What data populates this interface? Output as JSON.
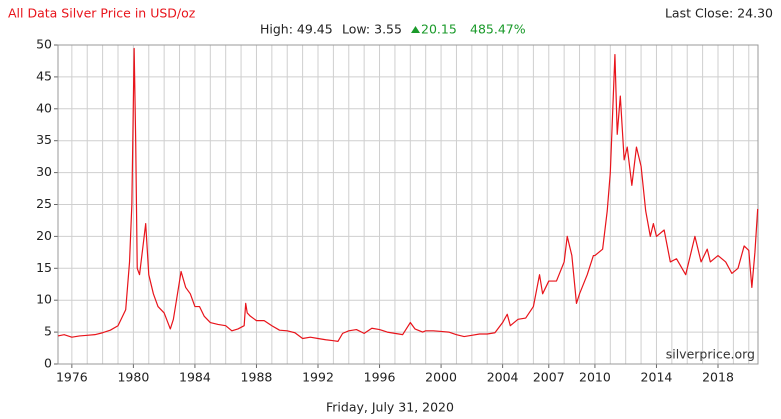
{
  "chart_data": {
    "type": "line",
    "title": "All Data Silver Price in USD/oz",
    "last_close": "Last Close: 24.30",
    "stats": {
      "high": "High: 49.45",
      "low": "Low: 3.55",
      "change": "20.15",
      "change_pct": "485.47%"
    },
    "watermark": "silverprice.org",
    "date": "Friday, July 31, 2020",
    "x": [
      1975.1,
      1975.5,
      1976,
      1976.5,
      1977,
      1977.5,
      1978,
      1978.5,
      1979,
      1979.5,
      1979.75,
      1979.9,
      1980.05,
      1980.15,
      1980.25,
      1980.4,
      1980.6,
      1980.8,
      1981,
      1981.3,
      1981.6,
      1982,
      1982.4,
      1982.6,
      1982.8,
      1983.1,
      1983.4,
      1983.7,
      1984,
      1984.3,
      1984.6,
      1985,
      1985.5,
      1986,
      1986.4,
      1986.8,
      1987.2,
      1987.3,
      1987.4,
      1987.6,
      1988,
      1988.5,
      1989,
      1989.5,
      1990,
      1990.5,
      1991,
      1991.5,
      1992,
      1992.5,
      1993,
      1993.3,
      1993.6,
      1994,
      1994.5,
      1995,
      1995.5,
      1996,
      1996.5,
      1997,
      1997.5,
      1998,
      1998.3,
      1998.8,
      1999,
      1999.5,
      2000,
      2000.5,
      2001,
      2001.5,
      2002,
      2002.5,
      2003,
      2003.5,
      2004,
      2004.3,
      2004.5,
      2005,
      2005.5,
      2006,
      2006.4,
      2006.6,
      2007,
      2007.5,
      2008,
      2008.2,
      2008.5,
      2008.8,
      2009,
      2009.5,
      2009.9,
      2010,
      2010.5,
      2010.8,
      2011,
      2011.3,
      2011.45,
      2011.65,
      2011.9,
      2012.1,
      2012.4,
      2012.7,
      2013,
      2013.3,
      2013.6,
      2013.8,
      2014,
      2014.5,
      2014.9,
      2015.3,
      2015.9,
      2016.5,
      2016.9,
      2017.3,
      2017.5,
      2018,
      2018.5,
      2018.9,
      2019.3,
      2019.7,
      2020,
      2020.2,
      2020.4,
      2020.58
    ],
    "series": [
      {
        "color": "#e8141b",
        "values": [
          4.4,
          4.6,
          4.2,
          4.4,
          4.5,
          4.6,
          4.9,
          5.3,
          6.0,
          8.5,
          16,
          25,
          49.45,
          35,
          15,
          14,
          18,
          22,
          14,
          11,
          9,
          8,
          5.5,
          7,
          10,
          14.5,
          12,
          11,
          9,
          9,
          7.5,
          6.5,
          6.2,
          6,
          5.2,
          5.5,
          6,
          9.5,
          8,
          7.5,
          6.8,
          6.8,
          6,
          5.3,
          5.2,
          4.9,
          4.0,
          4.2,
          4.0,
          3.8,
          3.65,
          3.55,
          4.8,
          5.2,
          5.4,
          4.8,
          5.6,
          5.4,
          5.0,
          4.8,
          4.6,
          6.5,
          5.5,
          5.0,
          5.2,
          5.2,
          5.1,
          5.0,
          4.6,
          4.3,
          4.5,
          4.7,
          4.7,
          4.9,
          6.5,
          7.8,
          6.0,
          7.0,
          7.2,
          9,
          14,
          11,
          13,
          13,
          16,
          20,
          17,
          9.5,
          11,
          14,
          17,
          17,
          18,
          24,
          30,
          48.5,
          36,
          42,
          32,
          34,
          28,
          34,
          31,
          24,
          20,
          22,
          20,
          21,
          16,
          16.5,
          14,
          20,
          16,
          18,
          16,
          17,
          16,
          14.2,
          15,
          18.5,
          17.8,
          12,
          17.5,
          24.3
        ]
      }
    ],
    "xlim": [
      1975.1,
      2020.6
    ],
    "xticks": [
      1976,
      1980,
      1984,
      1988,
      1992,
      1996,
      2000,
      2004,
      2007,
      2010,
      2014,
      2018
    ],
    "x_minor_ticks": [
      1976,
      1977,
      1978,
      1979,
      1980,
      1981,
      1982,
      1983,
      1984,
      1985,
      1986,
      1987,
      1988,
      1989,
      1990,
      1991,
      1992,
      1993,
      1994,
      1995,
      1996,
      1997,
      1998,
      1999,
      2000,
      2001,
      2002,
      2003,
      2004,
      2005,
      2006,
      2007,
      2008,
      2009,
      2010,
      2011,
      2012,
      2013,
      2014,
      2015,
      2016,
      2017,
      2018,
      2019,
      2020
    ],
    "ylim": [
      0,
      50
    ],
    "yticks": [
      0,
      5,
      10,
      15,
      20,
      25,
      30,
      35,
      40,
      45,
      50
    ],
    "grid": true
  }
}
